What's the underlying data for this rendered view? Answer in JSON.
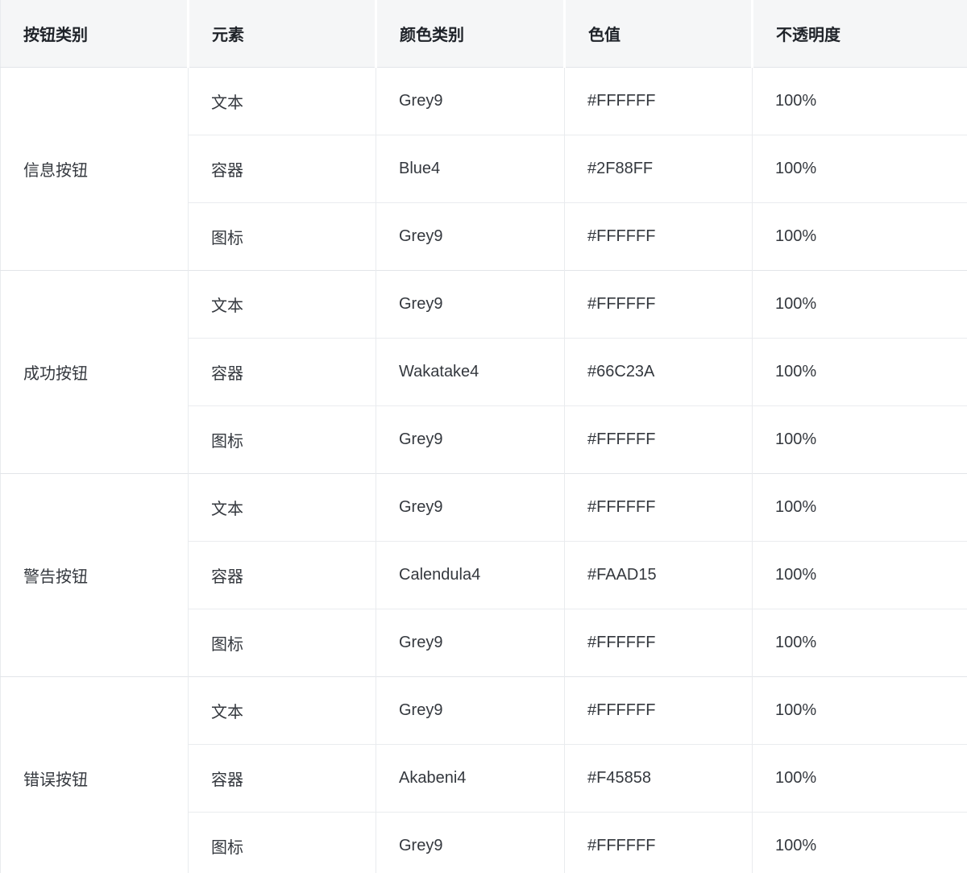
{
  "table": {
    "columns": [
      "按钮类别",
      "元素",
      "颜色类别",
      "色值",
      "不透明度"
    ],
    "groups": [
      {
        "category": "信息按钮",
        "rows": [
          {
            "element": "文本",
            "color_class": "Grey9",
            "hex": "#FFFFFF",
            "opacity": "100%"
          },
          {
            "element": "容器",
            "color_class": "Blue4",
            "hex": "#2F88FF",
            "opacity": "100%"
          },
          {
            "element": "图标",
            "color_class": "Grey9",
            "hex": "#FFFFFF",
            "opacity": "100%"
          }
        ]
      },
      {
        "category": "成功按钮",
        "rows": [
          {
            "element": "文本",
            "color_class": "Grey9",
            "hex": "#FFFFFF",
            "opacity": "100%"
          },
          {
            "element": "容器",
            "color_class": "Wakatake4",
            "hex": "#66C23A",
            "opacity": "100%"
          },
          {
            "element": "图标",
            "color_class": "Grey9",
            "hex": "#FFFFFF",
            "opacity": "100%"
          }
        ]
      },
      {
        "category": "警告按钮",
        "rows": [
          {
            "element": "文本",
            "color_class": "Grey9",
            "hex": "#FFFFFF",
            "opacity": "100%"
          },
          {
            "element": "容器",
            "color_class": "Calendula4",
            "hex": "#FAAD15",
            "opacity": "100%"
          },
          {
            "element": "图标",
            "color_class": "Grey9",
            "hex": "#FFFFFF",
            "opacity": "100%"
          }
        ]
      },
      {
        "category": "错误按钮",
        "rows": [
          {
            "element": "文本",
            "color_class": "Grey9",
            "hex": "#FFFFFF",
            "opacity": "100%"
          },
          {
            "element": "容器",
            "color_class": "Akabeni4",
            "hex": "#F45858",
            "opacity": "100%"
          },
          {
            "element": "图标",
            "color_class": "Grey9",
            "hex": "#FFFFFF",
            "opacity": "100%"
          }
        ]
      }
    ]
  },
  "colors": {
    "header_background": "#F5F6F7",
    "grid_line": "#E9EBEE",
    "strong_line": "#E2E5E9",
    "header_text": "#1F2329",
    "body_text": "#34383E"
  }
}
